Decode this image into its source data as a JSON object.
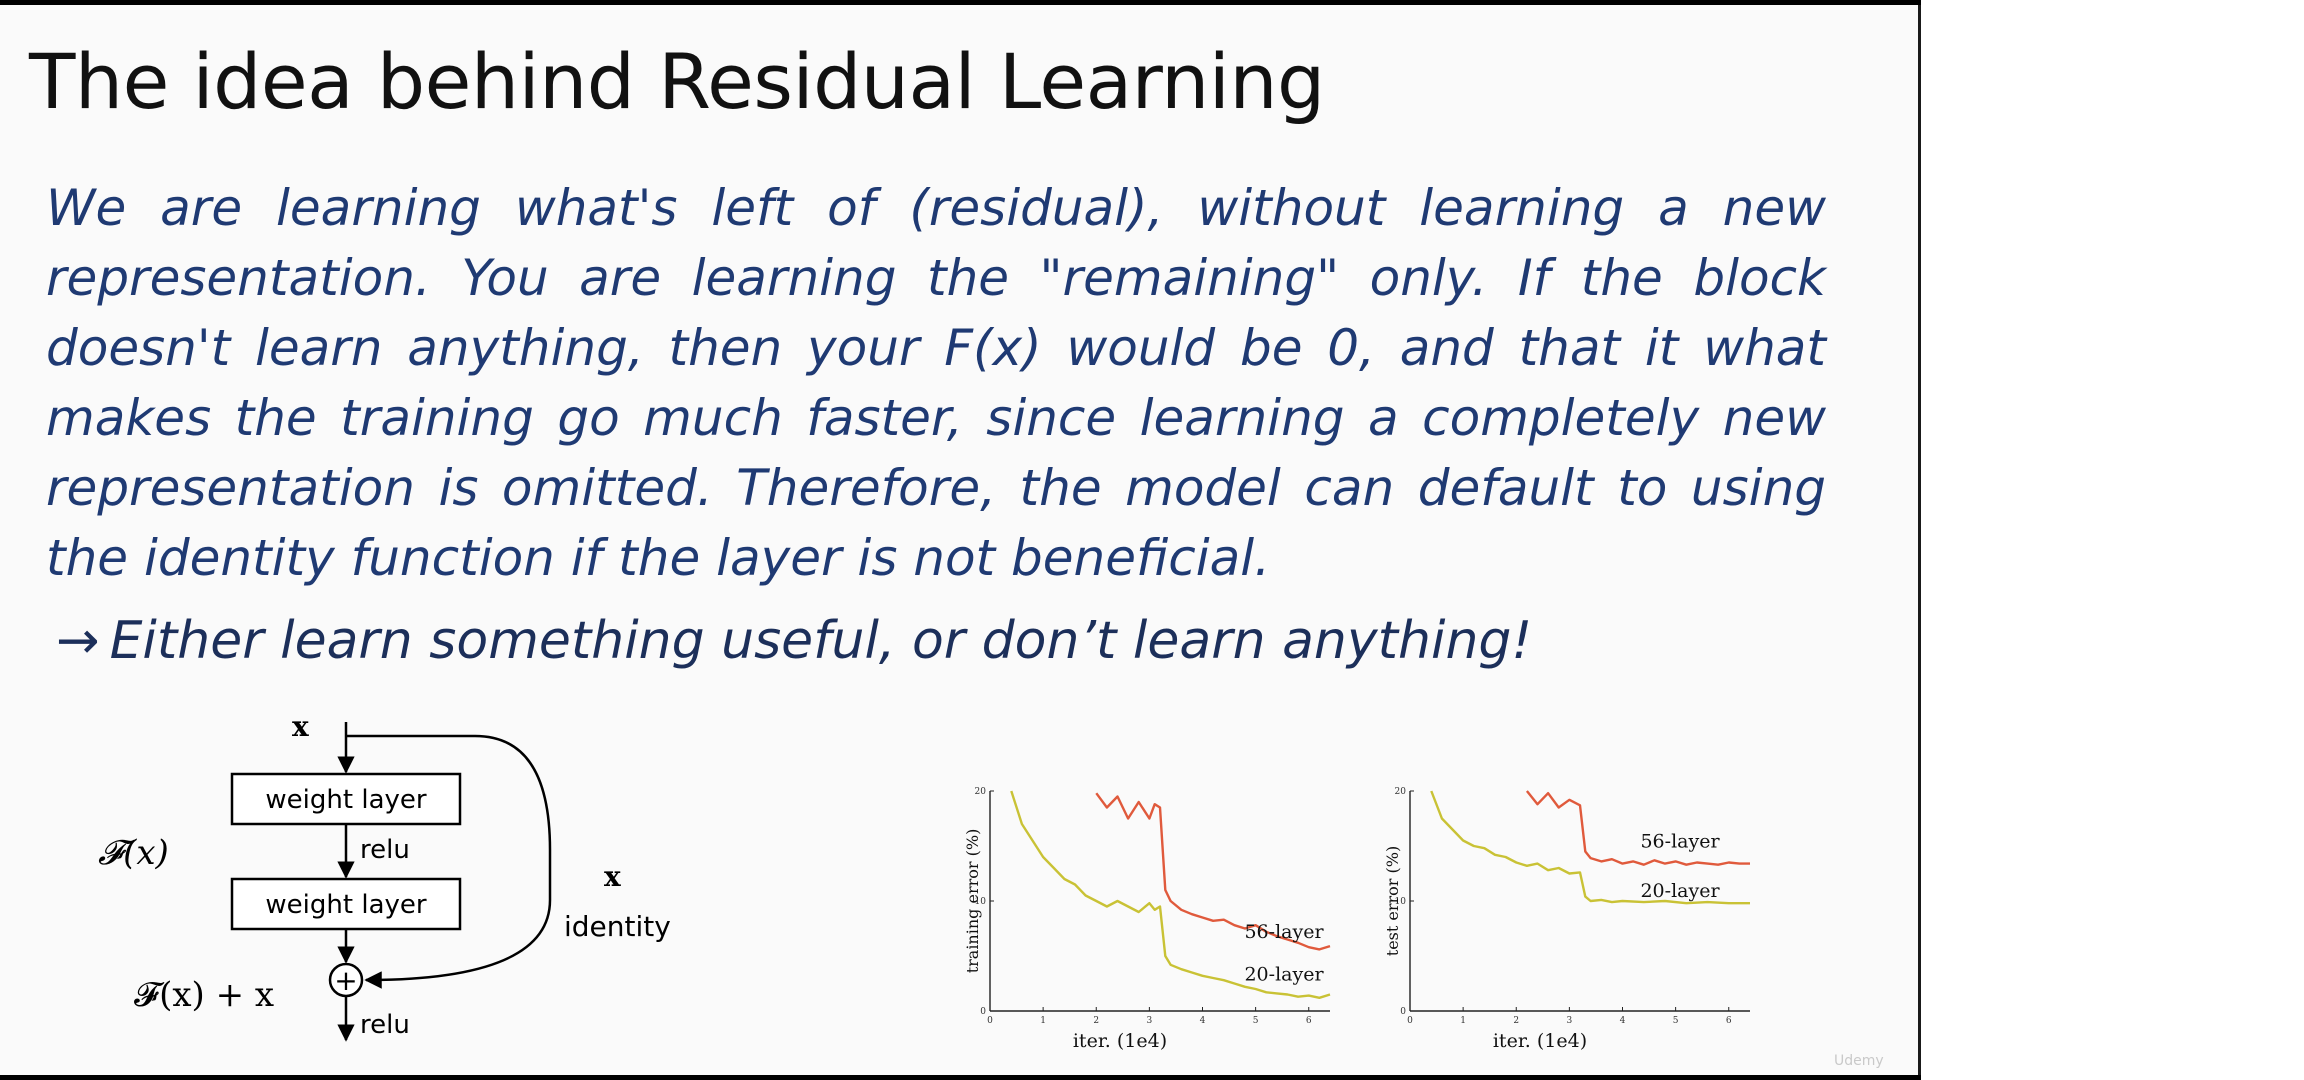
{
  "slide": {
    "title": "The idea behind Residual Learning",
    "body": "We are learning what's left of (residual), without learning a new representation. You are learning the \"remaining\" only. If the block doesn't learn anything, then your F(x) would be 0, and that it what makes the training go much faster, since learning a completely new representation is omitted. Therefore, the model can default to using the identity function if the layer is not beneficial.",
    "takeaway_arrow": "→",
    "takeaway": "Either learn something useful, or don’t learn anything!"
  },
  "diagram": {
    "input_label": "x",
    "fx_label": "𝓕(x)",
    "layer1_label": "weight layer",
    "relu1_label": "relu",
    "layer2_label": "weight layer",
    "identity_x_label": "x",
    "identity_label": "identity",
    "sum_label": "𝓕(x) + x",
    "plus_symbol": "+",
    "relu2_label": "relu"
  },
  "chart_data": [
    {
      "type": "line",
      "ylabel": "training error (%)",
      "xlabel": "iter. (1e4)",
      "xlim": [
        0,
        6.4
      ],
      "ylim": [
        0,
        20
      ],
      "xticks": [
        "0",
        "1",
        "2",
        "3",
        "4",
        "5",
        "6"
      ],
      "yticks": [
        "0",
        "10",
        "20"
      ],
      "series": [
        {
          "name": "20-layer",
          "color": "#c9c235",
          "x": [
            0.4,
            0.6,
            0.8,
            1.0,
            1.2,
            1.4,
            1.6,
            1.8,
            2.0,
            2.2,
            2.4,
            2.6,
            2.8,
            3.0,
            3.1,
            3.2,
            3.3,
            3.4,
            3.6,
            3.8,
            4.0,
            4.2,
            4.4,
            4.6,
            4.8,
            5.0,
            5.2,
            5.4,
            5.6,
            5.8,
            6.0,
            6.2,
            6.4
          ],
          "y": [
            20,
            17,
            15.5,
            14,
            13,
            12,
            11.5,
            10.5,
            10,
            9.5,
            10,
            9.5,
            9,
            9.8,
            9.2,
            9.5,
            5,
            4.2,
            3.8,
            3.5,
            3.2,
            3,
            2.8,
            2.5,
            2.2,
            2,
            1.7,
            1.6,
            1.5,
            1.3,
            1.4,
            1.2,
            1.5
          ]
        },
        {
          "name": "56-layer",
          "color": "#e05a3c",
          "x": [
            2.0,
            2.2,
            2.4,
            2.6,
            2.8,
            3.0,
            3.1,
            3.2,
            3.3,
            3.4,
            3.6,
            3.8,
            4.0,
            4.2,
            4.4,
            4.6,
            4.8,
            5.0,
            5.2,
            5.4,
            5.6,
            5.8,
            6.0,
            6.2,
            6.4
          ],
          "y": [
            19.8,
            18.5,
            19.5,
            17.5,
            19,
            17.5,
            18.8,
            18.5,
            11,
            10,
            9.2,
            8.8,
            8.5,
            8.2,
            8.3,
            7.8,
            7.5,
            7.8,
            7.2,
            6.8,
            6.5,
            6.2,
            5.8,
            5.6,
            5.9
          ]
        }
      ]
    },
    {
      "type": "line",
      "ylabel": "test error (%)",
      "xlabel": "iter. (1e4)",
      "xlim": [
        0,
        6.4
      ],
      "ylim": [
        0,
        20
      ],
      "xticks": [
        "0",
        "1",
        "2",
        "3",
        "4",
        "5",
        "6"
      ],
      "yticks": [
        "0",
        "10",
        "20"
      ],
      "series": [
        {
          "name": "56-layer",
          "color": "#e05a3c",
          "x": [
            2.2,
            2.4,
            2.6,
            2.8,
            3.0,
            3.2,
            3.3,
            3.4,
            3.6,
            3.8,
            4.0,
            4.2,
            4.4,
            4.6,
            4.8,
            5.0,
            5.2,
            5.4,
            5.6,
            5.8,
            6.0,
            6.2,
            6.4
          ],
          "y": [
            20,
            18.8,
            19.8,
            18.5,
            19.2,
            18.7,
            14.5,
            13.9,
            13.6,
            13.8,
            13.4,
            13.6,
            13.3,
            13.7,
            13.4,
            13.6,
            13.3,
            13.5,
            13.4,
            13.3,
            13.5,
            13.4,
            13.4
          ]
        },
        {
          "name": "20-layer",
          "color": "#c9c235",
          "x": [
            0.4,
            0.6,
            0.8,
            1.0,
            1.2,
            1.4,
            1.6,
            1.8,
            2.0,
            2.2,
            2.4,
            2.6,
            2.8,
            3.0,
            3.2,
            3.3,
            3.4,
            3.6,
            3.8,
            4.0,
            4.4,
            4.8,
            5.2,
            5.6,
            6.0,
            6.4
          ],
          "y": [
            20,
            17.5,
            16.5,
            15.5,
            15,
            14.8,
            14.2,
            14,
            13.5,
            13.2,
            13.4,
            12.8,
            13,
            12.5,
            12.6,
            10.4,
            10,
            10.1,
            9.9,
            10,
            9.9,
            10,
            9.8,
            9.9,
            9.8,
            9.8
          ]
        }
      ]
    }
  ],
  "watermark": "Udemy"
}
